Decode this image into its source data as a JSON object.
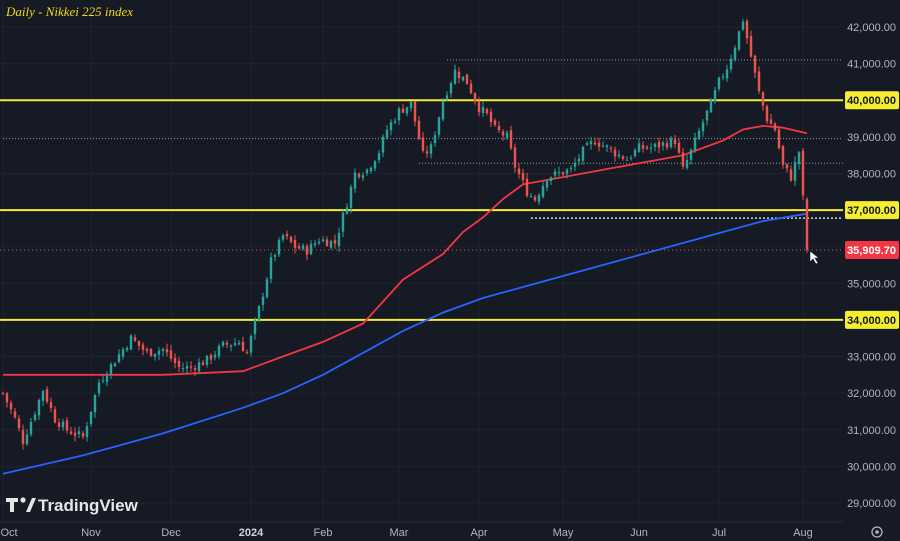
{
  "chart_data": {
    "type": "candlestick",
    "title": "Daily - Nikkei 225 index",
    "ylim": [
      28700,
      42600
    ],
    "y_ticks": [
      29000,
      30000,
      31000,
      32000,
      33000,
      34000,
      35000,
      36000,
      37000,
      38000,
      39000,
      40000,
      41000,
      42000
    ],
    "y_tick_labels": [
      "29,000.00",
      "30,000.00",
      "31,000.00",
      "32,000.00",
      "33,000.00",
      "34,000.00",
      "35,000.00",
      "36,000.00",
      "37,000.00",
      "38,000.00",
      "39,000.00",
      "40,000.00",
      "41,000.00",
      "42,000.00"
    ],
    "x_ticks": [
      {
        "label": "Oct",
        "idx": 0,
        "bold": false
      },
      {
        "label": "Nov",
        "idx": 22,
        "bold": false
      },
      {
        "label": "Dec",
        "idx": 42,
        "bold": false
      },
      {
        "label": "2024",
        "idx": 62,
        "bold": true
      },
      {
        "label": "Feb",
        "idx": 80,
        "bold": false
      },
      {
        "label": "Mar",
        "idx": 99,
        "bold": false
      },
      {
        "label": "Apr",
        "idx": 119,
        "bold": false
      },
      {
        "label": "May",
        "idx": 140,
        "bold": false
      },
      {
        "label": "Jun",
        "idx": 159,
        "bold": false
      },
      {
        "label": "Jul",
        "idx": 179,
        "bold": false
      },
      {
        "label": "Aug",
        "idx": 200,
        "bold": false
      }
    ],
    "bars_total": 202,
    "horizontal_levels": [
      {
        "value": 40000,
        "label": "40,000.00",
        "style": "yellow"
      },
      {
        "value": 37000,
        "label": "37,000.00",
        "style": "yellow"
      },
      {
        "value": 34000,
        "label": "34,000.00",
        "style": "yellow"
      },
      {
        "value": 35909.7,
        "label": "35,909.70",
        "style": "last-price"
      },
      {
        "value": 41100,
        "style": "dotted-white",
        "from_idx": 111
      },
      {
        "value": 38950,
        "style": "dotted-white",
        "from_idx": 0
      },
      {
        "value": 38280,
        "style": "dotted-white",
        "from_idx": 104
      },
      {
        "value": 36780,
        "style": "dotted-bold",
        "from_idx": 132
      }
    ],
    "last_price": 35909.7,
    "anchors": [
      [
        0,
        32000
      ],
      [
        3,
        31300
      ],
      [
        5,
        30700
      ],
      [
        8,
        31500
      ],
      [
        10,
        32100
      ],
      [
        13,
        31300
      ],
      [
        16,
        31000
      ],
      [
        20,
        30800
      ],
      [
        24,
        32300
      ],
      [
        28,
        32900
      ],
      [
        32,
        33500
      ],
      [
        36,
        33100
      ],
      [
        40,
        33200
      ],
      [
        44,
        32700
      ],
      [
        47,
        32700
      ],
      [
        51,
        32900
      ],
      [
        55,
        33300
      ],
      [
        59,
        33400
      ],
      [
        61,
        33100
      ],
      [
        64,
        34300
      ],
      [
        67,
        35600
      ],
      [
        70,
        36300
      ],
      [
        73,
        36000
      ],
      [
        76,
        35900
      ],
      [
        79,
        36200
      ],
      [
        83,
        36100
      ],
      [
        86,
        37200
      ],
      [
        88,
        38000
      ],
      [
        91,
        38100
      ],
      [
        94,
        38600
      ],
      [
        96,
        39200
      ],
      [
        99,
        39700
      ],
      [
        102,
        39900
      ],
      [
        105,
        38500
      ],
      [
        107,
        38700
      ],
      [
        110,
        40000
      ],
      [
        113,
        40800
      ],
      [
        116,
        40500
      ],
      [
        119,
        39800
      ],
      [
        121,
        39600
      ],
      [
        123,
        39200
      ],
      [
        126,
        39000
      ],
      [
        128,
        38200
      ],
      [
        131,
        37500
      ],
      [
        133,
        37300
      ],
      [
        136,
        37900
      ],
      [
        139,
        38000
      ],
      [
        142,
        38100
      ],
      [
        145,
        38600
      ],
      [
        148,
        38900
      ],
      [
        151,
        38700
      ],
      [
        154,
        38500
      ],
      [
        156,
        38400
      ],
      [
        159,
        38700
      ],
      [
        162,
        38700
      ],
      [
        165,
        38800
      ],
      [
        168,
        38900
      ],
      [
        170,
        38100
      ],
      [
        172,
        38600
      ],
      [
        175,
        39400
      ],
      [
        177,
        39900
      ],
      [
        179,
        40500
      ],
      [
        181,
        40900
      ],
      [
        183,
        41500
      ],
      [
        185,
        42200
      ],
      [
        187,
        41200
      ],
      [
        189,
        40200
      ],
      [
        191,
        39500
      ],
      [
        193,
        39200
      ],
      [
        195,
        38200
      ],
      [
        197,
        37900
      ],
      [
        199,
        38600
      ],
      [
        200,
        37300
      ],
      [
        201,
        35909.7
      ]
    ],
    "series": [
      {
        "name": "",
        "color": "#f23645",
        "kind": "ma",
        "points": [
          [
            0,
            32500
          ],
          [
            20,
            32500
          ],
          [
            40,
            32500
          ],
          [
            60,
            32600
          ],
          [
            70,
            33000
          ],
          [
            80,
            33400
          ],
          [
            90,
            33900
          ],
          [
            95,
            34500
          ],
          [
            100,
            35100
          ],
          [
            110,
            35800
          ],
          [
            115,
            36400
          ],
          [
            120,
            36800
          ],
          [
            125,
            37300
          ],
          [
            130,
            37700
          ],
          [
            140,
            37900
          ],
          [
            150,
            38100
          ],
          [
            160,
            38300
          ],
          [
            170,
            38500
          ],
          [
            180,
            38900
          ],
          [
            185,
            39200
          ],
          [
            190,
            39300
          ],
          [
            195,
            39250
          ],
          [
            201,
            39100
          ]
        ]
      },
      {
        "name": "",
        "color": "#2962ff",
        "kind": "ma",
        "points": [
          [
            0,
            29800
          ],
          [
            20,
            30300
          ],
          [
            40,
            30900
          ],
          [
            60,
            31600
          ],
          [
            70,
            32000
          ],
          [
            80,
            32500
          ],
          [
            90,
            33100
          ],
          [
            100,
            33700
          ],
          [
            110,
            34200
          ],
          [
            120,
            34600
          ],
          [
            130,
            34900
          ],
          [
            140,
            35200
          ],
          [
            150,
            35500
          ],
          [
            160,
            35800
          ],
          [
            170,
            36100
          ],
          [
            180,
            36400
          ],
          [
            190,
            36700
          ],
          [
            201,
            36900
          ]
        ]
      }
    ],
    "up_color": "#26a69a",
    "down_color": "#ef5350"
  },
  "watermark": {
    "text": "TradingView"
  }
}
